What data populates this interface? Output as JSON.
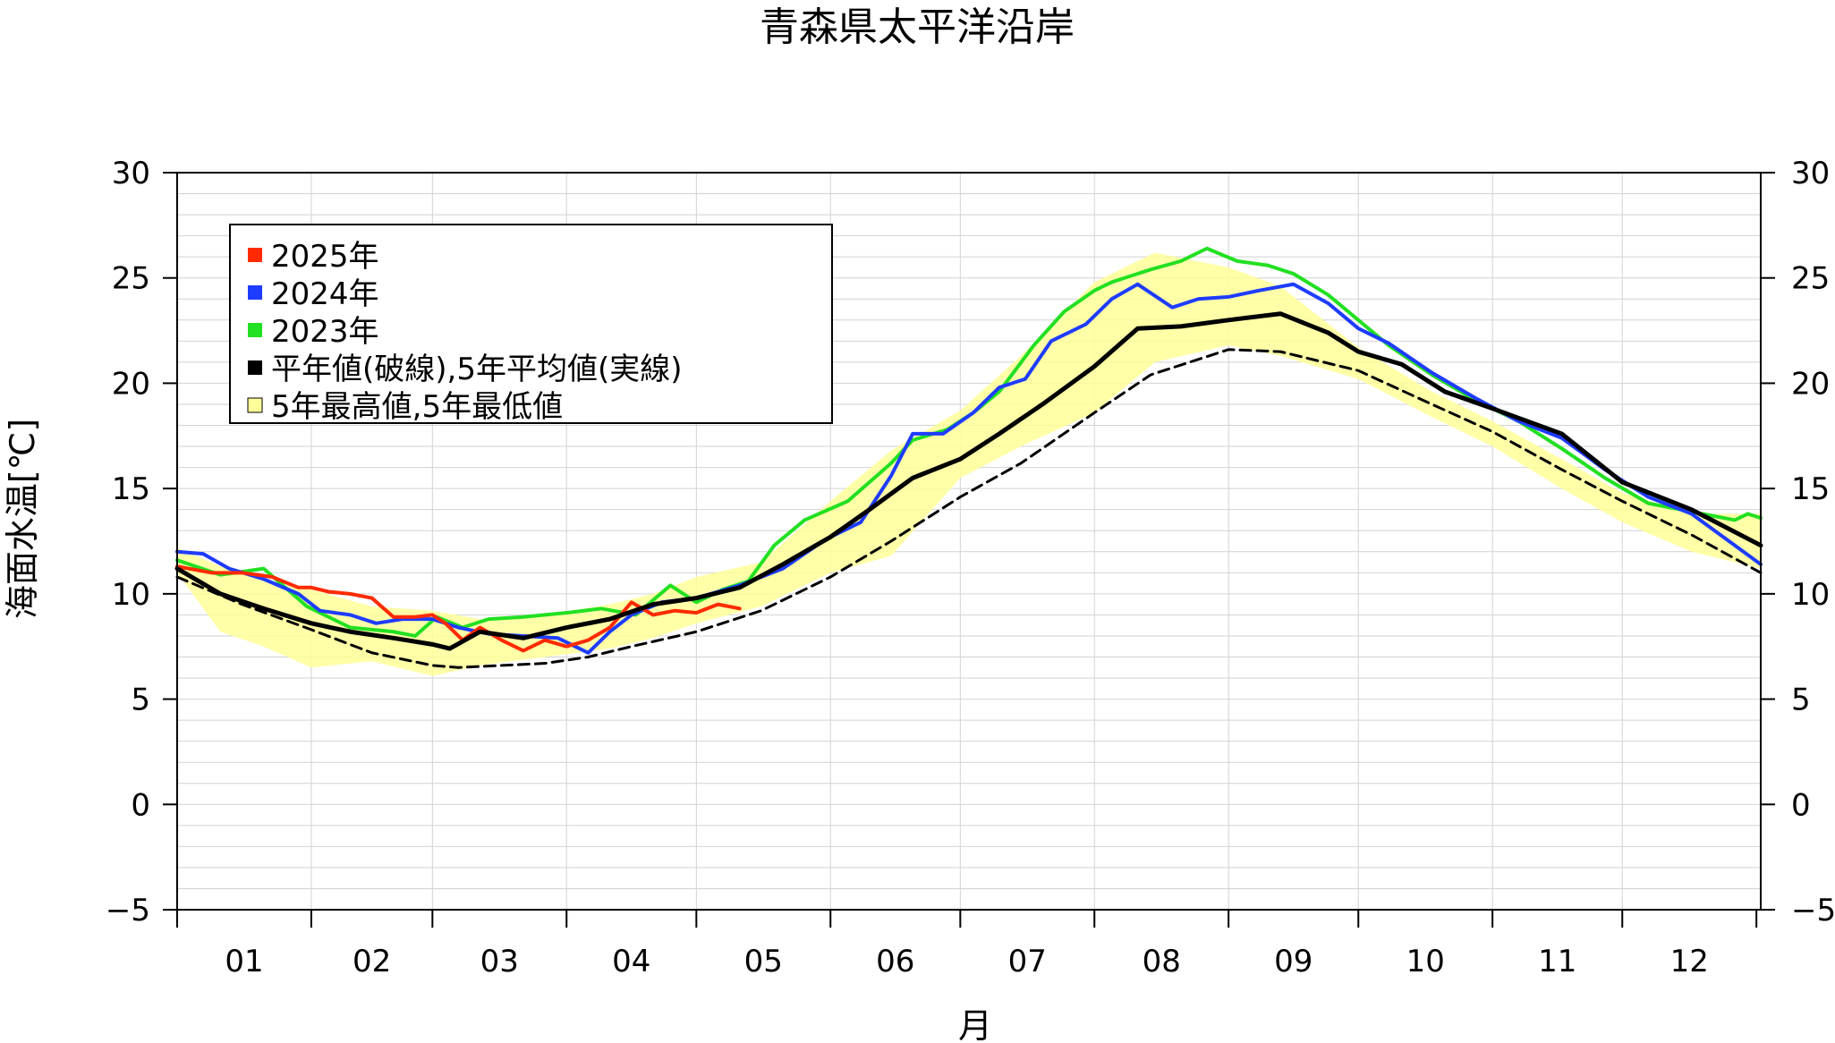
{
  "chart_data": {
    "type": "line",
    "title": "青森県太平洋沿岸",
    "xlabel": "月",
    "ylabel": "海面水温[℃]",
    "xlim": [
      0,
      366
    ],
    "ylim": [
      -5,
      30
    ],
    "y_ticks": [
      "−5",
      "0",
      "5",
      "10",
      "15",
      "20",
      "25",
      "30"
    ],
    "y_tick_values": [
      -5,
      0,
      5,
      10,
      15,
      20,
      25,
      30
    ],
    "x_tick_labels": [
      "01",
      "02",
      "03",
      "04",
      "05",
      "06",
      "07",
      "08",
      "09",
      "10",
      "11",
      "12"
    ],
    "grid": true,
    "legend_position": "top-left",
    "legend": [
      {
        "label": "2025年",
        "color": "#ff2a00"
      },
      {
        "label": "2024年",
        "color": "#1e3cff"
      },
      {
        "label": "2023年",
        "color": "#22e022"
      },
      {
        "label": "平年値(破線),5年平均値(実線)",
        "color": "#000000"
      },
      {
        "label": "5年最高値,5年最低値",
        "color": "#ffff99"
      }
    ],
    "band": {
      "x": [
        0,
        10,
        20,
        31,
        45,
        59,
        70,
        85,
        100,
        110,
        120,
        135,
        151,
        165,
        181,
        195,
        212,
        226,
        243,
        255,
        273,
        290,
        304,
        320,
        334,
        350,
        366
      ],
      "upper": [
        12.2,
        11.3,
        10.6,
        10.2,
        9.4,
        9.2,
        8.8,
        9.0,
        9.5,
        10.0,
        10.8,
        11.5,
        14.4,
        16.8,
        18.7,
        21.3,
        24.8,
        26.2,
        25.5,
        24.6,
        21.7,
        19.6,
        18.2,
        16.4,
        14.8,
        13.8,
        13.8
      ],
      "lower": [
        11.0,
        8.2,
        7.5,
        6.5,
        6.8,
        6.1,
        6.6,
        7.0,
        7.4,
        7.9,
        8.6,
        9.4,
        11.0,
        11.8,
        15.5,
        17.0,
        18.6,
        21.0,
        21.8,
        21.3,
        20.2,
        18.4,
        17.0,
        15.0,
        13.4,
        12.0,
        11.2
      ]
    },
    "series": [
      {
        "name": "2025年",
        "color": "#ff2a00",
        "x": [
          0,
          8,
          15,
          22,
          28,
          31,
          35,
          40,
          45,
          50,
          55,
          59,
          62,
          66,
          70,
          75,
          80,
          85,
          90,
          95,
          100,
          105,
          110,
          115,
          120,
          125,
          130
        ],
        "y": [
          11.3,
          11.0,
          11.0,
          10.8,
          10.3,
          10.3,
          10.1,
          10.0,
          9.8,
          8.9,
          8.9,
          9.0,
          8.6,
          7.8,
          8.4,
          7.8,
          7.3,
          7.8,
          7.5,
          7.8,
          8.4,
          9.6,
          9.0,
          9.2,
          9.1,
          9.5,
          9.3
        ]
      },
      {
        "name": "2024年",
        "color": "#1e3cff",
        "x": [
          0,
          6,
          12,
          20,
          28,
          33,
          40,
          46,
          52,
          59,
          65,
          72,
          80,
          88,
          95,
          100,
          105,
          112,
          120,
          130,
          140,
          150,
          158,
          165,
          170,
          177,
          184,
          190,
          196,
          202,
          210,
          216,
          222,
          230,
          236,
          243,
          250,
          258,
          266,
          273,
          280,
          290,
          300,
          310,
          320,
          330,
          340,
          350,
          366
        ],
        "y": [
          12.0,
          11.9,
          11.2,
          10.7,
          10.0,
          9.2,
          9.0,
          8.6,
          8.8,
          8.8,
          8.4,
          8.1,
          8.0,
          7.9,
          7.2,
          8.2,
          9.0,
          9.6,
          9.8,
          10.4,
          11.2,
          12.6,
          13.4,
          15.6,
          17.6,
          17.6,
          18.6,
          19.8,
          20.2,
          22.0,
          22.8,
          24.0,
          24.7,
          23.6,
          24.0,
          24.1,
          24.4,
          24.7,
          23.8,
          22.6,
          21.9,
          20.5,
          19.3,
          18.2,
          17.4,
          15.9,
          14.6,
          13.8,
          11.4
        ]
      },
      {
        "name": "2023年",
        "color": "#22e022",
        "x": [
          0,
          10,
          20,
          30,
          40,
          50,
          55,
          60,
          66,
          72,
          80,
          90,
          98,
          106,
          114,
          120,
          126,
          132,
          138,
          145,
          155,
          165,
          170,
          178,
          184,
          190,
          198,
          205,
          212,
          216,
          225,
          232,
          238,
          245,
          252,
          258,
          266,
          273,
          280,
          290,
          300,
          310,
          320,
          330,
          340,
          350,
          360,
          363,
          366
        ],
        "y": [
          11.6,
          10.9,
          11.2,
          9.4,
          8.4,
          8.2,
          8.0,
          8.9,
          8.4,
          8.8,
          8.9,
          9.1,
          9.3,
          9.0,
          10.4,
          9.6,
          10.2,
          10.6,
          12.3,
          13.5,
          14.4,
          16.2,
          17.3,
          17.8,
          18.6,
          19.6,
          21.8,
          23.4,
          24.4,
          24.8,
          25.4,
          25.8,
          26.4,
          25.8,
          25.6,
          25.2,
          24.2,
          23.0,
          21.8,
          20.4,
          19.2,
          18.2,
          16.9,
          15.5,
          14.3,
          13.9,
          13.5,
          13.8,
          13.6
        ]
      },
      {
        "name": "5年平均値",
        "color": "#000000",
        "style": "solid",
        "x": [
          0,
          10,
          20,
          31,
          40,
          50,
          59,
          63,
          70,
          80,
          90,
          100,
          110,
          120,
          130,
          140,
          151,
          160,
          170,
          181,
          190,
          200,
          212,
          222,
          232,
          243,
          255,
          266,
          273,
          283,
          293,
          304,
          320,
          334,
          350,
          366
        ],
        "y": [
          11.2,
          10.0,
          9.3,
          8.6,
          8.2,
          7.9,
          7.6,
          7.4,
          8.2,
          7.9,
          8.4,
          8.8,
          9.5,
          9.8,
          10.3,
          11.4,
          12.7,
          14.0,
          15.5,
          16.4,
          17.6,
          19.0,
          20.8,
          22.6,
          22.7,
          23.0,
          23.3,
          22.4,
          21.5,
          20.9,
          19.6,
          18.8,
          17.6,
          15.3,
          14.0,
          12.3
        ]
      },
      {
        "name": "平年値",
        "color": "#000000",
        "style": "dashed",
        "x": [
          0,
          15,
          31,
          45,
          59,
          65,
          75,
          85,
          95,
          105,
          120,
          135,
          151,
          165,
          181,
          195,
          212,
          225,
          243,
          255,
          273,
          290,
          304,
          320,
          334,
          350,
          366
        ],
        "y": [
          10.8,
          9.5,
          8.3,
          7.2,
          6.6,
          6.5,
          6.6,
          6.7,
          7.0,
          7.5,
          8.2,
          9.2,
          10.8,
          12.5,
          14.6,
          16.2,
          18.6,
          20.4,
          21.6,
          21.5,
          20.6,
          19.0,
          17.7,
          15.9,
          14.4,
          12.8,
          11.0
        ]
      }
    ]
  }
}
